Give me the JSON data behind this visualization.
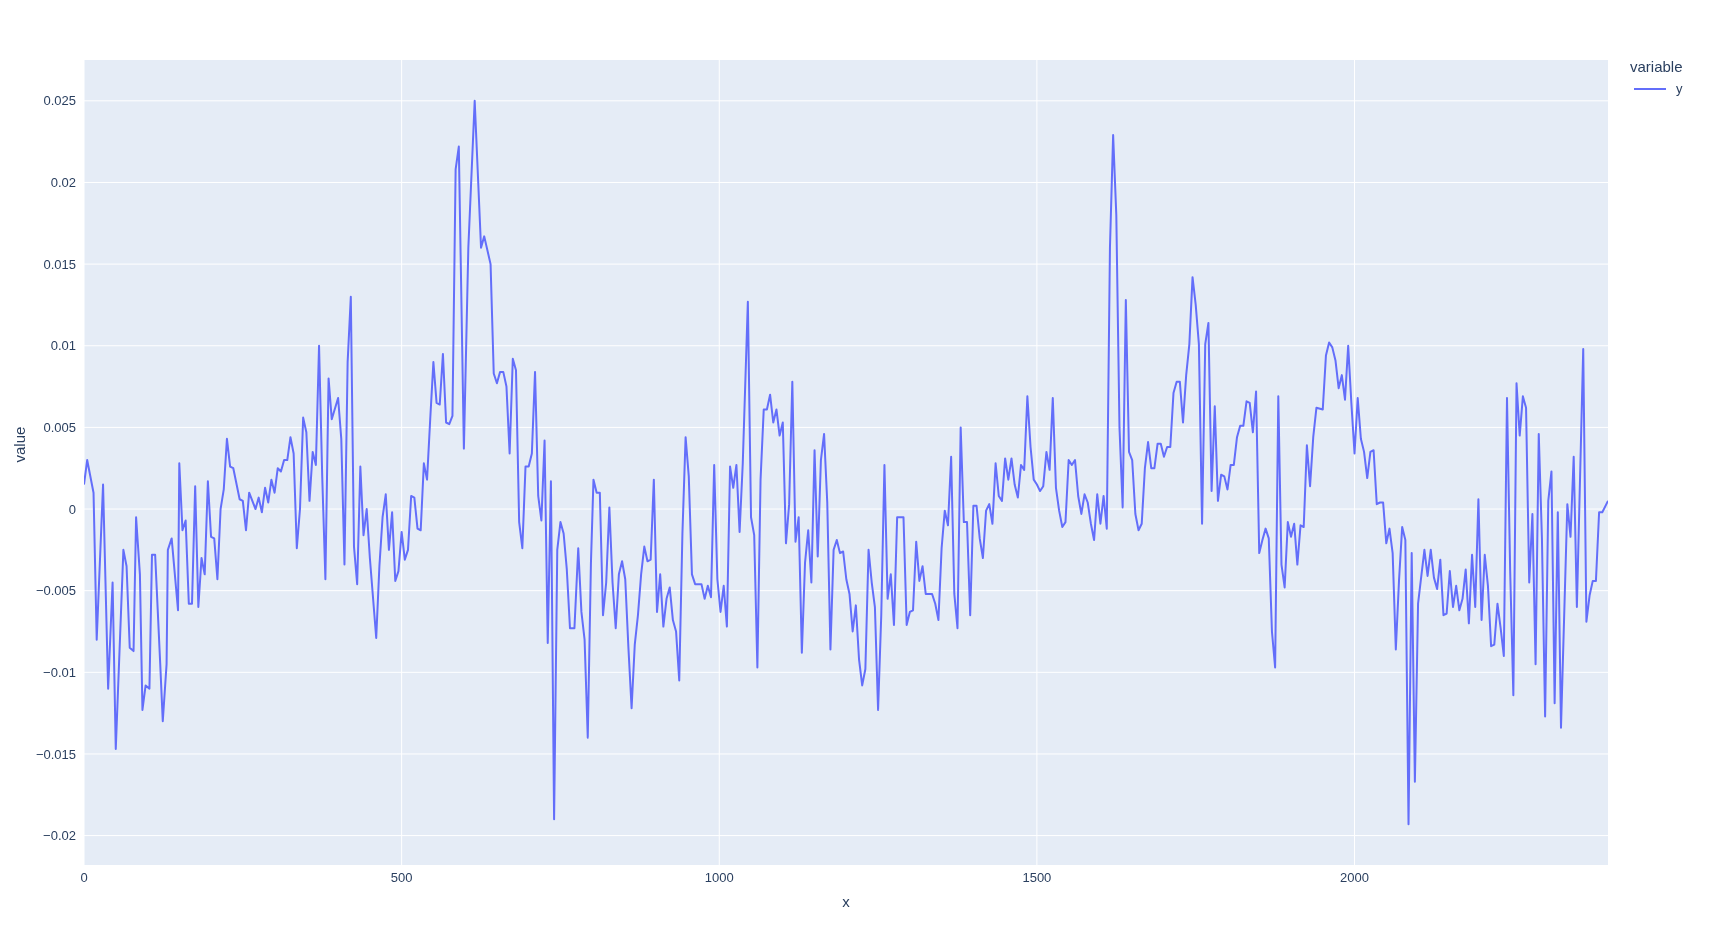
{
  "chart_data": {
    "type": "line",
    "xlabel": "x",
    "ylabel": "value",
    "legend_title": "variable",
    "legend": "top right",
    "grid": true,
    "xlim": [
      0,
      2399
    ],
    "xticks": [
      0,
      500,
      1000,
      1500,
      2000
    ],
    "ylim": [
      -0.0218,
      0.0275
    ],
    "yticks": [
      {
        "value": -0.02,
        "label": "−0.02"
      },
      {
        "value": -0.015,
        "label": "−0.015"
      },
      {
        "value": -0.01,
        "label": "−0.01"
      },
      {
        "value": -0.005,
        "label": "−0.005"
      },
      0,
      0.005,
      0.01,
      0.015,
      0.02,
      0.025
    ],
    "x": [
      0,
      5,
      15,
      20,
      30,
      38,
      45,
      50,
      62,
      67,
      72,
      78,
      82,
      88,
      92,
      97,
      103,
      107,
      112,
      120,
      124,
      130,
      132,
      138,
      148,
      150,
      155,
      160,
      165,
      170,
      175,
      180,
      185,
      190,
      195,
      200,
      205,
      210,
      215,
      220,
      225,
      230,
      235,
      245,
      250,
      255,
      260,
      270,
      275,
      280,
      285,
      290,
      295,
      300,
      305,
      310,
      315,
      320,
      325,
      330,
      335,
      340,
      345,
      350,
      355,
      360,
      365,
      370,
      375,
      380,
      385,
      390,
      400,
      405,
      410,
      415,
      420,
      425,
      430,
      435,
      440,
      445,
      450,
      460,
      465,
      470,
      475,
      480,
      485,
      490,
      495,
      500,
      505,
      510,
      515,
      520,
      525,
      530,
      535,
      540,
      545,
      550,
      555,
      560,
      565,
      570,
      575,
      580,
      585,
      590,
      598,
      605,
      615,
      625,
      630,
      640,
      645,
      650,
      655,
      660,
      665,
      670,
      675,
      680,
      685,
      690,
      695,
      700,
      705,
      710,
      715,
      720,
      725,
      730,
      735,
      740,
      745,
      750,
      755,
      760,
      765,
      772,
      778,
      783,
      788,
      793,
      798,
      802,
      807,
      812,
      817,
      822,
      827,
      832,
      837,
      842,
      847,
      852,
      857,
      862,
      867,
      872,
      877,
      882,
      887,
      892,
      897,
      902,
      907,
      912,
      917,
      922,
      927,
      932,
      937,
      942,
      947,
      952,
      957,
      962,
      972,
      977,
      982,
      987,
      992,
      997,
      1002,
      1007,
      1012,
      1017,
      1022,
      1027,
      1032,
      1037,
      1045,
      1050,
      1055,
      1060,
      1065,
      1070,
      1075,
      1080,
      1085,
      1090,
      1095,
      1100,
      1105,
      1110,
      1115,
      1120,
      1125,
      1130,
      1135,
      1140,
      1145,
      1150,
      1155,
      1160,
      1165,
      1170,
      1175,
      1180,
      1185,
      1190,
      1195,
      1200,
      1205,
      1210,
      1215,
      1220,
      1225,
      1230,
      1235,
      1240,
      1245,
      1250,
      1255,
      1260,
      1265,
      1270,
      1275,
      1280,
      1290,
      1295,
      1300,
      1305,
      1310,
      1315,
      1320,
      1325,
      1335,
      1340,
      1345,
      1350,
      1355,
      1360,
      1365,
      1370,
      1375,
      1380,
      1385,
      1390,
      1395,
      1400,
      1405,
      1410,
      1415,
      1420,
      1425,
      1430,
      1435,
      1440,
      1445,
      1450,
      1455,
      1460,
      1465,
      1470,
      1475,
      1480,
      1485,
      1490,
      1495,
      1500,
      1505,
      1510,
      1515,
      1520,
      1525,
      1530,
      1535,
      1540,
      1545,
      1550,
      1555,
      1560,
      1565,
      1570,
      1575,
      1580,
      1585,
      1590,
      1595,
      1600,
      1605,
      1610,
      1615,
      1620,
      1625,
      1630,
      1635,
      1640,
      1645,
      1650,
      1655,
      1660,
      1665,
      1670,
      1675,
      1680,
      1685,
      1690,
      1695,
      1700,
      1705,
      1710,
      1715,
      1720,
      1725,
      1730,
      1735,
      1740,
      1745,
      1750,
      1755,
      1760,
      1765,
      1770,
      1775,
      1780,
      1785,
      1790,
      1795,
      1800,
      1805,
      1810,
      1815,
      1820,
      1825,
      1830,
      1835,
      1840,
      1845,
      1850,
      1855,
      1860,
      1865,
      1870,
      1875,
      1880,
      1885,
      1890,
      1895,
      1900,
      1905,
      1910,
      1915,
      1920,
      1925,
      1930,
      1935,
      1940,
      1950,
      1955,
      1960,
      1965,
      1970,
      1975,
      1980,
      1985,
      1990,
      1995,
      2000,
      2005,
      2010,
      2015,
      2020,
      2025,
      2030,
      2035,
      2040,
      2045,
      2050,
      2055,
      2060,
      2065,
      2070,
      2075,
      2080,
      2085,
      2090,
      2095,
      2100,
      2110,
      2115,
      2120,
      2125,
      2130,
      2135,
      2140,
      2145,
      2150,
      2155,
      2160,
      2165,
      2170,
      2175,
      2180,
      2185,
      2190,
      2195,
      2200,
      2205,
      2210,
      2215,
      2220,
      2225,
      2230,
      2235,
      2240,
      2245,
      2250,
      2255,
      2260,
      2265,
      2270,
      2275,
      2280,
      2285,
      2290,
      2295,
      2300,
      2305,
      2310,
      2315,
      2320,
      2325,
      2335,
      2340,
      2345,
      2350,
      2360,
      2365,
      2370,
      2375,
      2380,
      2385,
      2390,
      2399
    ],
    "series": [
      {
        "name": "y",
        "color": "#636efa",
        "values": [
          0.0015,
          0.003,
          0.001,
          -0.008,
          0.0015,
          -0.011,
          -0.0045,
          -0.0147,
          -0.0025,
          -0.0035,
          -0.0085,
          -0.0087,
          -0.0005,
          -0.004,
          -0.0123,
          -0.0108,
          -0.011,
          -0.0028,
          -0.0028,
          -0.0095,
          -0.013,
          -0.0095,
          -0.0025,
          -0.0018,
          -0.0062,
          0.0028,
          -0.0013,
          -0.0007,
          -0.0058,
          -0.0058,
          0.0014,
          -0.006,
          -0.003,
          -0.004,
          0.0017,
          -0.0017,
          -0.0018,
          -0.0043,
          0,
          0.0012,
          0.0043,
          0.0026,
          0.0025,
          0.0006,
          0.0005,
          -0.0013,
          0.001,
          0,
          0.0007,
          -0.0002,
          0.0013,
          0.0004,
          0.0018,
          0.001,
          0.0025,
          0.0023,
          0.003,
          0.003,
          0.0044,
          0.0034,
          -0.0024,
          0,
          0.0056,
          0.0047,
          0.0005,
          0.0035,
          0.0027,
          0.01,
          0.002,
          -0.0043,
          0.008,
          0.0055,
          0.0068,
          0.0043,
          -0.0034,
          0.009,
          0.013,
          -0.0023,
          -0.0046,
          0.0026,
          -0.0016,
          0,
          -0.003,
          -0.0079,
          -0.0035,
          -0.0005,
          0.0009,
          -0.0025,
          -0.0002,
          -0.0044,
          -0.0038,
          -0.0014,
          -0.0031,
          -0.0025,
          0.0008,
          0.0007,
          -0.0012,
          -0.0013,
          0.0028,
          0.0018,
          0.0055,
          0.009,
          0.0065,
          0.0064,
          0.0095,
          0.0053,
          0.0052,
          0.0057,
          0.0208,
          0.0222,
          0.0037,
          0.016,
          0.025,
          0.016,
          0.0167,
          0.015,
          0.0083,
          0.0077,
          0.0084,
          0.0084,
          0.0075,
          0.0034,
          0.0092,
          0.0085,
          -0.0008,
          -0.0024,
          0.0026,
          0.0026,
          0.0034,
          0.0084,
          0.0008,
          -0.0007,
          0.0042,
          -0.0082,
          0.0017,
          -0.019,
          -0.0025,
          -0.0008,
          -0.0015,
          -0.0037,
          -0.0073,
          -0.0073,
          -0.0024,
          -0.0063,
          -0.008,
          -0.014,
          -0.0033,
          0.0018,
          0.001,
          0.001,
          -0.0065,
          -0.0045,
          0.0001,
          -0.0045,
          -0.0073,
          -0.004,
          -0.0032,
          -0.0043,
          -0.0085,
          -0.0122,
          -0.0083,
          -0.0065,
          -0.004,
          -0.0023,
          -0.0032,
          -0.0031,
          0.0018,
          -0.0063,
          -0.004,
          -0.0072,
          -0.0055,
          -0.0048,
          -0.0068,
          -0.0075,
          -0.0105,
          -0.0015,
          0.0044,
          0.002,
          -0.004,
          -0.0046,
          -0.0046,
          -0.0055,
          -0.0047,
          -0.0054,
          0.0027,
          -0.0043,
          -0.0063,
          -0.0047,
          -0.0072,
          0.0026,
          0.0013,
          0.0027,
          -0.0014,
          0.0028,
          0.0127,
          -0.0005,
          -0.0016,
          -0.0097,
          0.0018,
          0.0061,
          0.0061,
          0.007,
          0.0053,
          0.0061,
          0.0045,
          0.0053,
          -0.0021,
          0.0003,
          0.0078,
          -0.002,
          -0.0005,
          -0.0088,
          -0.0033,
          -0.0013,
          -0.0045,
          0.0036,
          -0.0029,
          0.003,
          0.0046,
          0.0004,
          -0.0086,
          -0.0025,
          -0.0019,
          -0.0027,
          -0.0026,
          -0.0043,
          -0.0052,
          -0.0075,
          -0.0059,
          -0.0092,
          -0.0108,
          -0.0098,
          -0.0025,
          -0.0045,
          -0.006,
          -0.0123,
          -0.0065,
          0.0027,
          -0.0055,
          -0.004,
          -0.0071,
          -0.0005,
          -0.0005,
          -0.0071,
          -0.0063,
          -0.0062,
          -0.002,
          -0.0044,
          -0.0035,
          -0.0052,
          -0.0052,
          -0.0058,
          -0.0068,
          -0.0024,
          -0.0001,
          -0.001,
          0.0032,
          -0.0052,
          -0.0073,
          0.005,
          -0.0008,
          -0.0008,
          -0.0065,
          0.0002,
          0.0002,
          -0.0018,
          -0.003,
          -0.0001,
          0.0003,
          -0.0009,
          0.0028,
          0.0008,
          0.0005,
          0.0031,
          0.0018,
          0.0031,
          0.0015,
          0.0007,
          0.0027,
          0.0024,
          0.0069,
          0.0038,
          0.0018,
          0.0015,
          0.0011,
          0.0014,
          0.0035,
          0.0024,
          0.0068,
          0.0013,
          -0.0001,
          -0.0011,
          -0.0008,
          0.003,
          0.0027,
          0.003,
          0.0008,
          -0.0003,
          0.0009,
          0.0004,
          -0.0009,
          -0.0019,
          0.0009,
          -0.0009,
          0.0008,
          -0.0012,
          0.016,
          0.0229,
          0.018,
          0.005,
          0.0001,
          0.0128,
          0.0035,
          0.003,
          -0.0003,
          -0.0013,
          -0.0009,
          0.0025,
          0.0041,
          0.0025,
          0.0025,
          0.004,
          0.004,
          0.0032,
          0.0038,
          0.0038,
          0.0071,
          0.0078,
          0.0078,
          0.0053,
          0.0082,
          0.0101,
          0.0142,
          0.0125,
          0.0101,
          -0.0009,
          0.0101,
          0.0114,
          0.0011,
          0.0063,
          0.0005,
          0.0021,
          0.002,
          0.0012,
          0.0027,
          0.0027,
          0.0044,
          0.0051,
          0.0051,
          0.0066,
          0.0065,
          0.0047,
          0.0072,
          -0.0027,
          -0.0019,
          -0.0012,
          -0.0018,
          -0.0075,
          -0.0097,
          0.0069,
          -0.0034,
          -0.0048,
          -0.0008,
          -0.0017,
          -0.0009,
          -0.0034,
          -0.001,
          -0.0011,
          0.0039,
          0.0014,
          0.0044,
          0.0062,
          0.0061,
          0.0094,
          0.0102,
          0.0099,
          0.0091,
          0.0074,
          0.0082,
          0.0067,
          0.01,
          0.0065,
          0.0034,
          0.0068,
          0.0043,
          0.0035,
          0.0019,
          0.0035,
          0.0036,
          0.0003,
          0.0004,
          0.0004,
          -0.0021,
          -0.0012,
          -0.0027,
          -0.0086,
          -0.0044,
          -0.0011,
          -0.0019,
          -0.0193,
          -0.0027,
          -0.0167,
          -0.0058,
          -0.0025,
          -0.0041,
          -0.0025,
          -0.0042,
          -0.0049,
          -0.0031,
          -0.0065,
          -0.0064,
          -0.0038,
          -0.006,
          -0.0047,
          -0.0062,
          -0.0055,
          -0.0037,
          -0.007,
          -0.0028,
          -0.006,
          0.0006,
          -0.0068,
          -0.0028,
          -0.0047,
          -0.0084,
          -0.0083,
          -0.0058,
          -0.0073,
          -0.009,
          0.0068,
          -0.0038,
          -0.0114,
          0.0077,
          0.0045,
          0.0069,
          0.0062,
          -0.0045,
          -0.0003,
          -0.0095,
          0.0046,
          -0.0018,
          -0.0127,
          0.0005,
          0.0023,
          -0.0119,
          -0.0002,
          -0.0134,
          0.0003,
          -0.0017,
          0.0032,
          -0.006,
          0.0098,
          -0.0069,
          -0.0053,
          -0.0044,
          -0.0044,
          -0.0002,
          -0.0002,
          0.0005
        ]
      }
    ]
  }
}
